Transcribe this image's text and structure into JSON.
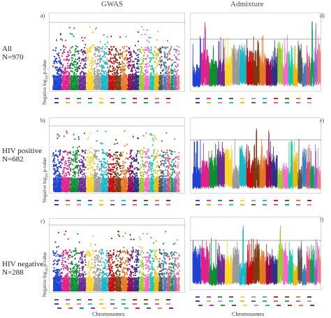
{
  "column_titles": {
    "left": "GWAS",
    "right": "Admixture"
  },
  "rows": [
    {
      "label_lines": [
        "All",
        "N=970"
      ]
    },
    {
      "label_lines": [
        "HIV positive",
        "N=682"
      ]
    },
    {
      "label_lines": [
        "HIV negative",
        "N=288"
      ]
    }
  ],
  "panel_letters": [
    "a)",
    "b)",
    "c)",
    "d)",
    "e)",
    "f)"
  ],
  "ylabel_prefix": "Negative log",
  "ylabel_sub": "10",
  "ylabel_suffix": " p-value",
  "xlabel": "Chromosomes",
  "chromosome_colors": [
    "#1f3fd1",
    "#e0218a",
    "#0a8f2e",
    "#6a2c91",
    "#ffd42a",
    "#9a9a9a",
    "#15b7c9",
    "#c80c0c",
    "#7a3a12",
    "#e87722",
    "#8b0a50",
    "#2e2e8f",
    "#9acd32",
    "#ff66cc",
    "#11caa4",
    "#f2b705",
    "#555555",
    "#3f7fbf",
    "#d94f70",
    "#00a650",
    "#a05cd5",
    "#f08080"
  ],
  "chart_data": [
    {
      "type": "scatter",
      "panel": "a",
      "title": "GWAS",
      "ylabel": "Negative log10 p-value",
      "xlabel": "",
      "threshold_line": true,
      "chromosome_count": 22
    },
    {
      "type": "scatter",
      "panel": "b",
      "ylabel": "Negative log10 p-value",
      "xlabel": "",
      "threshold_line": true,
      "chromosome_count": 22
    },
    {
      "type": "scatter",
      "panel": "c",
      "ylabel": "Negative log10 p-value",
      "xlabel": "Chromosomes",
      "threshold_line": true,
      "chromosome_count": 22
    },
    {
      "type": "line",
      "panel": "d",
      "title": "Admixture",
      "xlabel": "",
      "threshold_line": true,
      "chromosome_count": 22
    },
    {
      "type": "line",
      "panel": "e",
      "xlabel": "",
      "threshold_line": true,
      "chromosome_count": 22
    },
    {
      "type": "line",
      "panel": "f",
      "xlabel": "Chromosomes",
      "threshold_line": true,
      "chromosome_count": 22
    }
  ]
}
